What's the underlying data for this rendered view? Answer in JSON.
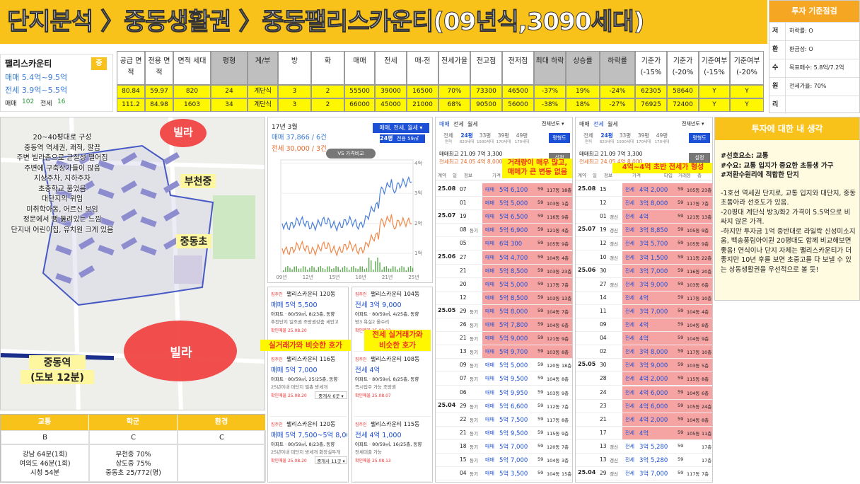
{
  "header": {
    "title": "단지분석 〉중동생활권 〉중동팰리스카운티(09년식,3090세대)"
  },
  "criteria": {
    "title": "투자 기준점검",
    "rows": [
      {
        "key": "저",
        "label": "하락률: O"
      },
      {
        "key": "환",
        "label": "환금성: O"
      },
      {
        "key": "수",
        "label": "목표매수: 5.8억/7.2억"
      },
      {
        "key": "원",
        "label": "전세가율: 70%"
      },
      {
        "key": "리"
      }
    ]
  },
  "summary": {
    "name": "팰리스카운티",
    "badge": "중",
    "sale": "매매 5.4억~9.5억",
    "rent": "전세 3.9억~5.5억",
    "sale_count_label": "매매",
    "sale_count": "102",
    "rent_count_label": "전세",
    "rent_count": "16"
  },
  "table": {
    "headers": [
      "공급 면적",
      "전용 면적",
      "면적 세대",
      "평형",
      "계/부",
      "방",
      "화",
      "매매",
      "전세",
      "매-전",
      "전세가율",
      "전고점",
      "전저점",
      "최대 하락",
      "상승률",
      "하락률",
      "기준가 (-15%",
      "기준가 (-20%",
      "기준여부 (-15%",
      "기준여부 (-20%"
    ],
    "rows": [
      [
        "80.84",
        "59.97",
        "820",
        "24",
        "계단식",
        "3",
        "2",
        "55500",
        "39000",
        "16500",
        "70%",
        "73300",
        "46500",
        "-37%",
        "19%",
        "-24%",
        "62305",
        "58640",
        "Y",
        "Y"
      ],
      [
        "111.2",
        "84.98",
        "1603",
        "34",
        "계단식",
        "3",
        "2",
        "66000",
        "45000",
        "21000",
        "68%",
        "90500",
        "56000",
        "-38%",
        "18%",
        "-27%",
        "76925",
        "72400",
        "Y",
        "Y"
      ]
    ]
  },
  "map": {
    "notes": [
      "20~40평대로 구성",
      "중동역 역세권, 쾌적, 깔끔",
      "주변 빌라촌으로 균질성 떨어짐",
      "주변에 구축상가들이 많음",
      "지상주차, 지하주차",
      "초중학교 품었음",
      "대단지의 위엄",
      "미취학아동, 어르신 보임",
      "정문에서 뻥 뚫려있는 느낌",
      "단지내 어린이집, 유치원 크게 있음"
    ],
    "villa_top": "빌라",
    "middle_school": "부천중",
    "elementary_school": "중동초",
    "villa_bottom": "빌라",
    "station": "중동역",
    "station_walk": "(도보 12분)"
  },
  "ratings": {
    "headers": [
      "교통",
      "학군",
      "환경"
    ],
    "grades": [
      "B",
      "C",
      "C"
    ],
    "transport": [
      "강남 64분(1회)",
      "여의도 46분(1회)",
      "시청 54분"
    ],
    "school": [
      "부천중 70%",
      "상도중 75%",
      "중동초 25/772(명)"
    ]
  },
  "price_chart": {
    "date": "17년 3월",
    "sale": "매매 37,866 / 6건",
    "rent": "전세 30,000 / 3건",
    "filter": "매매, 전세, 월세 ▾",
    "size": "24평",
    "size_sub": "전용 59㎡",
    "compare": "VS 가격비교",
    "y_labels": [
      "4억",
      "3억",
      "2억",
      "1억"
    ],
    "x_labels": [
      "09년",
      "12년",
      "15년",
      "18년",
      "21년",
      "25년"
    ]
  },
  "listings": {
    "annotation_left": "실거래가와 비슷한 호가",
    "annotation_right": "전세 실거래가와\n비슷한 호가",
    "left": [
      {
        "owner": "집주인",
        "name": "팰리스카운티 120동",
        "price": "매매 5억 5,500",
        "desc": "아파트 · 80/59㎡, 8/23층, 동향",
        "tags": "추천단지 일조권 조망권갖춤 세안고",
        "confirmed": "확인매물 25.08.20"
      },
      {
        "owner": "집주인",
        "name": "팰리스카운티 116동",
        "price": "매매 5억 7,000",
        "desc": "아파트 · 80/59㎡, 25/25층, 동향",
        "tags": "25년이내 대단지 필총 방세개",
        "confirmed": "확인매물 25.08.20",
        "agents": "중개사 6곳 ▾"
      },
      {
        "owner": "집주인",
        "name": "팰리스카운티 120동",
        "price": "매매 5억 7,500~5억 8,000",
        "desc": "아파트 · 80/59㎡, 8/23층, 동향",
        "tags": "25년이내 대단지 방세개 화장실두개",
        "confirmed": "확인매물 25.08.20",
        "agents": "중개사 11곳 ▾"
      }
    ],
    "right": [
      {
        "owner": "집주인",
        "name": "팰리스카운티 104동",
        "price": "전세 3억 9,000",
        "desc": "아파트 · 80/59㎡, 4/25층, 동향",
        "tags": "방3 욕실2 올수리",
        "confirmed": "확인매물 25.08.12"
      },
      {
        "owner": "집주인",
        "name": "팰리스카운티 108동",
        "price": "전세 4억",
        "desc": "아파트 · 80/59㎡, 8/25층, 동향",
        "tags": "즉시입주 가능 조망권",
        "confirmed": "확인매물 25.08.07"
      },
      {
        "owner": "집주인",
        "name": "팰리스카운티 115동",
        "price": "전세 4억 1,000",
        "desc": "아파트 · 80/59㎡, 16/25층, 동향",
        "tags": "전세대출 가능",
        "confirmed": "확인매물 25.08.13"
      }
    ]
  },
  "trades": [
    {
      "tabs": [
        "매매",
        "전세",
        "월세"
      ],
      "year_filter": "전체년도 ▾",
      "floorplan": "평형도",
      "sizes": [
        {
          "label": "전체",
          "sub": "면적"
        },
        {
          "label": "24평",
          "sub": "820세대"
        },
        {
          "label": "33평",
          "sub": "1930세대"
        },
        {
          "label": "39평",
          "sub": "170세대"
        },
        {
          "label": "49평",
          "sub": "170세대"
        }
      ],
      "high1": "매매최고 21.09 7억 3,300",
      "high2": "전세최고 24.05 4억 8,000",
      "settings": "설정",
      "note": "거래량이 매우 많고,\n매매가 큰 변동 없음",
      "columns": [
        "계약",
        "일",
        "정보",
        "가격",
        "타입",
        "거래동",
        "층"
      ],
      "rows": [
        {
          "month": "25.08",
          "day": "07",
          "type": "매매",
          "price": "5억 6,100",
          "area": "59",
          "dong": "117동",
          "floor": "18층",
          "highlight": true
        },
        {
          "day": "01",
          "type": "매매",
          "price": "5억 5,000",
          "area": "59",
          "dong": "103동",
          "floor": "1층",
          "highlight": true
        },
        {
          "month": "25.07",
          "day": "19",
          "type": "매매",
          "price": "5억 6,500",
          "area": "59",
          "dong": "116동",
          "floor": "9층",
          "highlight": true
        },
        {
          "day": "08",
          "tag": "동기",
          "type": "매매",
          "price": "5억 6,900",
          "area": "59",
          "dong": "121동",
          "floor": "4층",
          "highlight": true
        },
        {
          "day": "05",
          "type": "매매",
          "price": "6억 300",
          "area": "59",
          "dong": "105동",
          "floor": "9층",
          "highlight": true
        },
        {
          "month": "25.06",
          "day": "27",
          "type": "매매",
          "price": "5억 4,700",
          "area": "59",
          "dong": "104동",
          "floor": "4층",
          "highlight": true
        },
        {
          "day": "21",
          "type": "매매",
          "price": "5억 8,500",
          "area": "59",
          "dong": "103동",
          "floor": "23층",
          "highlight": true
        },
        {
          "day": "20",
          "type": "매매",
          "price": "5억 5,000",
          "area": "59",
          "dong": "117동",
          "floor": "7층",
          "highlight": true
        },
        {
          "day": "12",
          "type": "매매",
          "price": "5억 8,500",
          "area": "59",
          "dong": "103동",
          "floor": "13층",
          "highlight": true
        },
        {
          "month": "25.05",
          "day": "29",
          "tag": "동기",
          "type": "매매",
          "price": "5억 8,000",
          "area": "59",
          "dong": "104동",
          "floor": "7층",
          "highlight": true
        },
        {
          "day": "26",
          "tag": "동기",
          "type": "매매",
          "price": "5억 7,800",
          "area": "59",
          "dong": "104동",
          "floor": "6층",
          "highlight": true
        },
        {
          "day": "21",
          "tag": "동기",
          "type": "매매",
          "price": "5억 9,000",
          "area": "59",
          "dong": "121동",
          "floor": "9층",
          "highlight": true
        },
        {
          "day": "13",
          "tag": "동기",
          "type": "매매",
          "price": "5억 9,700",
          "area": "59",
          "dong": "103동",
          "floor": "8층",
          "highlight": true
        },
        {
          "day": "09",
          "tag": "동기",
          "type": "매매",
          "price": "5억 5,000",
          "area": "59",
          "dong": "120동",
          "floor": "18층"
        },
        {
          "day": "07",
          "tag": "동기",
          "type": "매매",
          "price": "5억 9,500",
          "area": "59",
          "dong": "104동",
          "floor": "8층"
        },
        {
          "day": "06",
          "type": "매매",
          "price": "5억 9,950",
          "area": "59",
          "dong": "103동",
          "floor": "9층"
        },
        {
          "month": "25.04",
          "day": "29",
          "tag": "동기",
          "type": "매매",
          "price": "5억 6,600",
          "area": "59",
          "dong": "112동",
          "floor": "7층"
        },
        {
          "day": "22",
          "tag": "동기",
          "type": "매매",
          "price": "5억 7,500",
          "area": "59",
          "dong": "117동",
          "floor": "8층"
        },
        {
          "day": "21",
          "tag": "동기",
          "type": "매매",
          "price": "5억 9,500",
          "area": "59",
          "dong": "115동",
          "floor": "9층"
        },
        {
          "day": "18",
          "tag": "동기",
          "type": "매매",
          "price": "5억 7,000",
          "area": "59",
          "dong": "120동",
          "floor": "7층"
        },
        {
          "day": "15",
          "tag": "동기",
          "type": "매매",
          "price": "5억 7,000",
          "area": "59",
          "dong": "104동",
          "floor": "3층"
        },
        {
          "day": "04",
          "tag": "동기",
          "type": "매매",
          "price": "5억 3,500",
          "area": "59",
          "dong": "104동",
          "floor": "15층"
        }
      ]
    },
    {
      "tabs": [
        "매매",
        "전세",
        "월세"
      ],
      "year_filter": "전체년도 ▾",
      "floorplan": "평형도",
      "sizes": [
        {
          "label": "전체",
          "sub": "면적"
        },
        {
          "label": "24평",
          "sub": "820세대"
        },
        {
          "label": "33평",
          "sub": "1930세대"
        },
        {
          "label": "39평",
          "sub": "170세대"
        },
        {
          "label": "49평",
          "sub": "170세대"
        }
      ],
      "high1": "매매최고 21.09 7억 3,300",
      "high2": "전세최고 24.05 4억 8,000",
      "settings": "설정",
      "note": "4억~4억 초반 전세가 형성",
      "columns": [
        "계약",
        "일",
        "정보",
        "가격",
        "타입",
        "거래동",
        "층"
      ],
      "rows": [
        {
          "month": "25.08",
          "day": "15",
          "type": "전세",
          "price": "4억 2,000",
          "area": "59",
          "dong": "105동",
          "floor": "23층",
          "highlight": true
        },
        {
          "day": "12",
          "type": "전세",
          "price": "3억 8,000",
          "area": "59",
          "dong": "117동",
          "floor": "7층",
          "highlight": true
        },
        {
          "day": "01",
          "tag": "갱신",
          "type": "전세",
          "price": "4억",
          "area": "59",
          "dong": "121동",
          "floor": "13층",
          "highlight": true
        },
        {
          "month": "25.07",
          "day": "19",
          "tag": "갱신",
          "type": "전세",
          "price": "3억 8,850",
          "area": "59",
          "dong": "105동",
          "floor": "9층",
          "highlight": true
        },
        {
          "day": "12",
          "tag": "갱신",
          "type": "전세",
          "price": "3억 5,700",
          "area": "59",
          "dong": "105동",
          "floor": "9층",
          "highlight": true
        },
        {
          "day": "10",
          "tag": "갱신",
          "type": "전세",
          "price": "3억 1,500",
          "area": "59",
          "dong": "111동",
          "floor": "22층",
          "highlight": true
        },
        {
          "month": "25.06",
          "day": "30",
          "type": "전세",
          "price": "3억 7,000",
          "area": "59",
          "dong": "116동",
          "floor": "20층",
          "highlight": true
        },
        {
          "day": "27",
          "tag": "갱신",
          "type": "전세",
          "price": "3억 9,000",
          "area": "59",
          "dong": "103동",
          "floor": "6층",
          "highlight": true
        },
        {
          "day": "14",
          "type": "전세",
          "price": "4억",
          "area": "59",
          "dong": "117동",
          "floor": "10층",
          "highlight": true
        },
        {
          "day": "11",
          "type": "전세",
          "price": "3억 7,000",
          "area": "59",
          "dong": "104동",
          "floor": "4층",
          "highlight": true
        },
        {
          "day": "09",
          "type": "전세",
          "price": "4억",
          "area": "59",
          "dong": "104동",
          "floor": "8층",
          "highlight": true
        },
        {
          "day": "04",
          "type": "전세",
          "price": "4억",
          "area": "59",
          "dong": "104동",
          "floor": "9층",
          "highlight": true
        },
        {
          "day": "02",
          "type": "전세",
          "price": "3억 8,000",
          "area": "59",
          "dong": "117동",
          "floor": "10층",
          "highlight": true
        },
        {
          "month": "25.05",
          "day": "30",
          "type": "전세",
          "price": "3억 9,000",
          "area": "59",
          "dong": "103동",
          "floor": "5층",
          "highlight": true
        },
        {
          "day": "28",
          "type": "전세",
          "price": "4억 2,000",
          "area": "59",
          "dong": "115동",
          "floor": "8층",
          "highlight": true
        },
        {
          "day": "24",
          "type": "전세",
          "price": "4억 6,000",
          "area": "59",
          "dong": "104동",
          "floor": "6층",
          "highlight": true
        },
        {
          "day": "23",
          "type": "전세",
          "price": "4억 6,000",
          "area": "59",
          "dong": "105동",
          "floor": "24층",
          "highlight": true
        },
        {
          "day": "21",
          "type": "전세",
          "price": "4억 2,000",
          "area": "59",
          "dong": "104동",
          "floor": "8층",
          "highlight": true
        },
        {
          "day": "17",
          "type": "전세",
          "price": "4억",
          "area": "59",
          "dong": "105동",
          "floor": "11층",
          "highlight": true
        },
        {
          "day": "13",
          "tag": "갱신",
          "type": "전세",
          "price": "3억 5,280",
          "area": "59",
          "floor": "17층"
        },
        {
          "day": "13",
          "tag": "갱신",
          "type": "전세",
          "price": "3억 5,280",
          "area": "59",
          "floor": "17층"
        },
        {
          "month": "25.04",
          "day": "29",
          "tag": "갱신",
          "type": "전세",
          "price": "3억 7,000",
          "area": "59",
          "dong": "117동",
          "floor": "7층"
        }
      ]
    }
  ],
  "opinion": {
    "title": "투자에 대한 내 생각",
    "tags": [
      "#선호요소: 교통",
      "#수요: 교통 입지가 중요한 초등생 가구",
      "#저환수원리에 적합한 단지"
    ],
    "points": [
      "-1호선 역세권 단지로, 교통 입지와 대단지, 중동초품아라 선호도가 있음.",
      "-20평대 계단식 방3/화2 가격이 5.5억으로 비싸지 않은 가격.",
      "-하지만 투자금 1억 중반대로 라일락 신성미소지움, 백송풍림아이원 20평대도 함께 비교해보면 좋음! 연식이나 단지 자체는 팰리스카운티가 더 좋지만 10년 후를 보면 초중고를 다 보낼 수 있는 상동생활권을 우선적으로 볼 듯!"
    ]
  }
}
